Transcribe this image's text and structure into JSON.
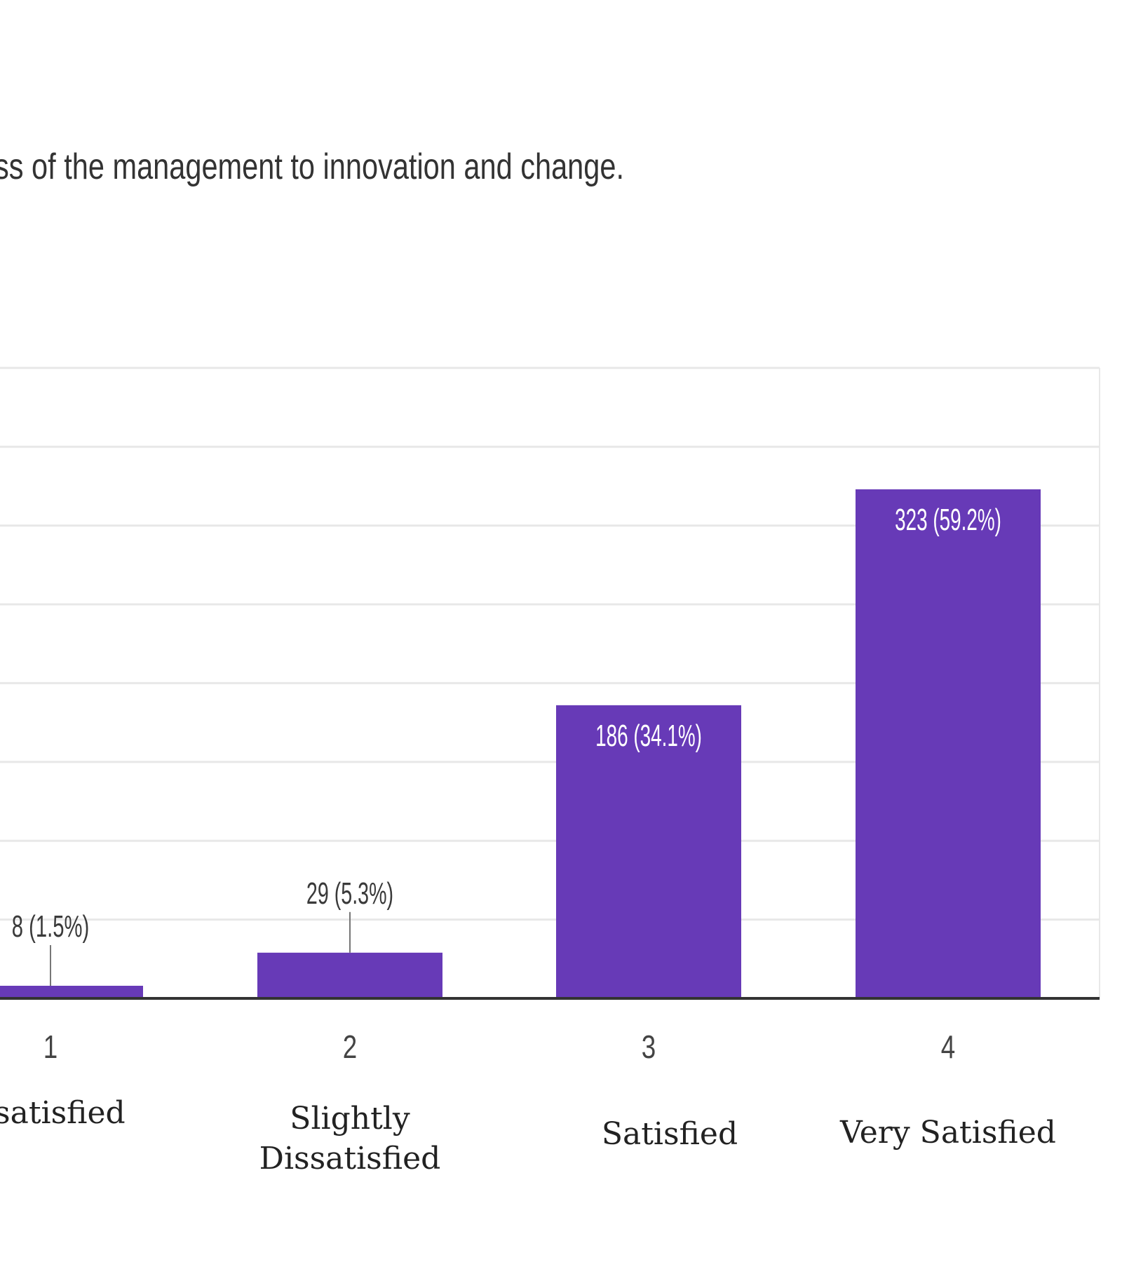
{
  "chart_data": {
    "type": "bar",
    "title": "ss of the management to innovation and change.",
    "categories": [
      "1",
      "2",
      "3",
      "4"
    ],
    "category_labels": [
      [
        "satisfied"
      ],
      [
        "Slightly",
        "Dissatisfied"
      ],
      [
        "Satisfied"
      ],
      [
        "Very Satisfied"
      ]
    ],
    "values": [
      8,
      29,
      186,
      323
    ],
    "data_labels": [
      "8 (1.5%)",
      "29 (5.3%)",
      "186 (34.1%)",
      "323 (59.2%)"
    ],
    "ylim": [
      0,
      400
    ],
    "grid": true,
    "colors": {
      "bar": "#673ab7",
      "grid": "#e8e8e8",
      "axis": "#333333",
      "inside_label": "#ffffff",
      "outside_label": "#3a3a3a",
      "title": "#333333",
      "category": "#222222"
    }
  }
}
